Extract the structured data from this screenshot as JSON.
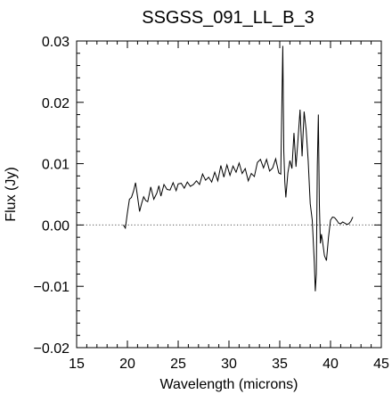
{
  "chart_data": {
    "type": "line",
    "title": "SSGSS_091_LL_B_3",
    "xlabel": "Wavelength (microns)",
    "ylabel": "Flux (Jy)",
    "xlim": [
      15,
      45
    ],
    "ylim": [
      -0.02,
      0.03
    ],
    "x_ticks": [
      15,
      20,
      25,
      30,
      35,
      40,
      45
    ],
    "x_tick_labels": [
      "15",
      "20",
      "25",
      "30",
      "35",
      "40",
      "45"
    ],
    "y_ticks": [
      -0.02,
      -0.01,
      0.0,
      0.01,
      0.02,
      0.03
    ],
    "y_tick_labels": [
      "−0.02",
      "−0.01",
      "0.00",
      "0.01",
      "0.02",
      "0.03"
    ],
    "grid": false,
    "legend": "none",
    "reference_line": {
      "y": 0.0,
      "style": "dotted"
    },
    "series": [
      {
        "x": [
          19.6,
          19.8,
          20.0,
          20.2,
          20.4,
          20.6,
          20.8,
          21.0,
          21.2,
          21.4,
          21.6,
          21.8,
          22.0,
          22.3,
          22.6,
          22.9,
          23.1,
          23.3,
          23.6,
          23.9,
          24.2,
          24.5,
          24.8,
          25.0,
          25.3,
          25.6,
          25.9,
          26.2,
          26.5,
          26.8,
          27.1,
          27.4,
          27.7,
          28.0,
          28.3,
          28.6,
          28.9,
          29.2,
          29.5,
          29.8,
          30.1,
          30.4,
          30.7,
          31.0,
          31.3,
          31.6,
          31.9,
          32.2,
          32.5,
          32.8,
          33.1,
          33.4,
          33.7,
          34.0,
          34.3,
          34.6,
          34.9,
          35.1,
          35.3,
          35.4,
          35.5,
          35.6,
          35.8,
          36.0,
          36.2,
          36.4,
          36.6,
          36.8,
          37.0,
          37.2,
          37.4,
          37.6,
          37.8,
          38.0,
          38.2,
          38.4,
          38.5,
          38.6,
          38.7,
          38.8,
          38.9,
          39.0,
          39.1,
          39.2,
          39.4,
          39.6,
          39.8,
          40.0,
          40.2,
          40.4,
          40.6,
          40.8,
          41.0,
          41.2,
          41.4,
          41.6,
          41.8,
          42.0,
          42.2
        ],
        "y": [
          0.0,
          -0.0005,
          0.002,
          0.0042,
          0.0045,
          0.0055,
          0.0069,
          0.0046,
          0.0022,
          0.0035,
          0.0046,
          0.004,
          0.0038,
          0.0062,
          0.0042,
          0.0052,
          0.0064,
          0.0047,
          0.0066,
          0.0058,
          0.0057,
          0.0069,
          0.0056,
          0.0067,
          0.0068,
          0.006,
          0.007,
          0.0063,
          0.0066,
          0.0072,
          0.0066,
          0.0083,
          0.0073,
          0.0078,
          0.007,
          0.0086,
          0.0072,
          0.0097,
          0.0078,
          0.0098,
          0.0081,
          0.0096,
          0.0086,
          0.0101,
          0.0084,
          0.0092,
          0.0072,
          0.0084,
          0.0079,
          0.0102,
          0.0107,
          0.0093,
          0.0107,
          0.0088,
          0.0093,
          0.0108,
          0.0085,
          0.0083,
          0.0292,
          0.012,
          0.007,
          0.0045,
          0.0085,
          0.0105,
          0.0092,
          0.015,
          0.0095,
          0.014,
          0.0188,
          0.0112,
          0.0185,
          0.0155,
          0.0105,
          0.0035,
          0.0008,
          -0.006,
          -0.0108,
          -0.008,
          0.0098,
          0.018,
          0.0035,
          -0.003,
          -0.0015,
          -0.0025,
          -0.005,
          -0.0058,
          -0.002,
          0.0008,
          0.0013,
          0.0012,
          0.0008,
          0.0003,
          0.0002,
          0.0005,
          0.0003,
          0.0001,
          0.0002,
          0.0006,
          0.0013
        ]
      }
    ]
  }
}
